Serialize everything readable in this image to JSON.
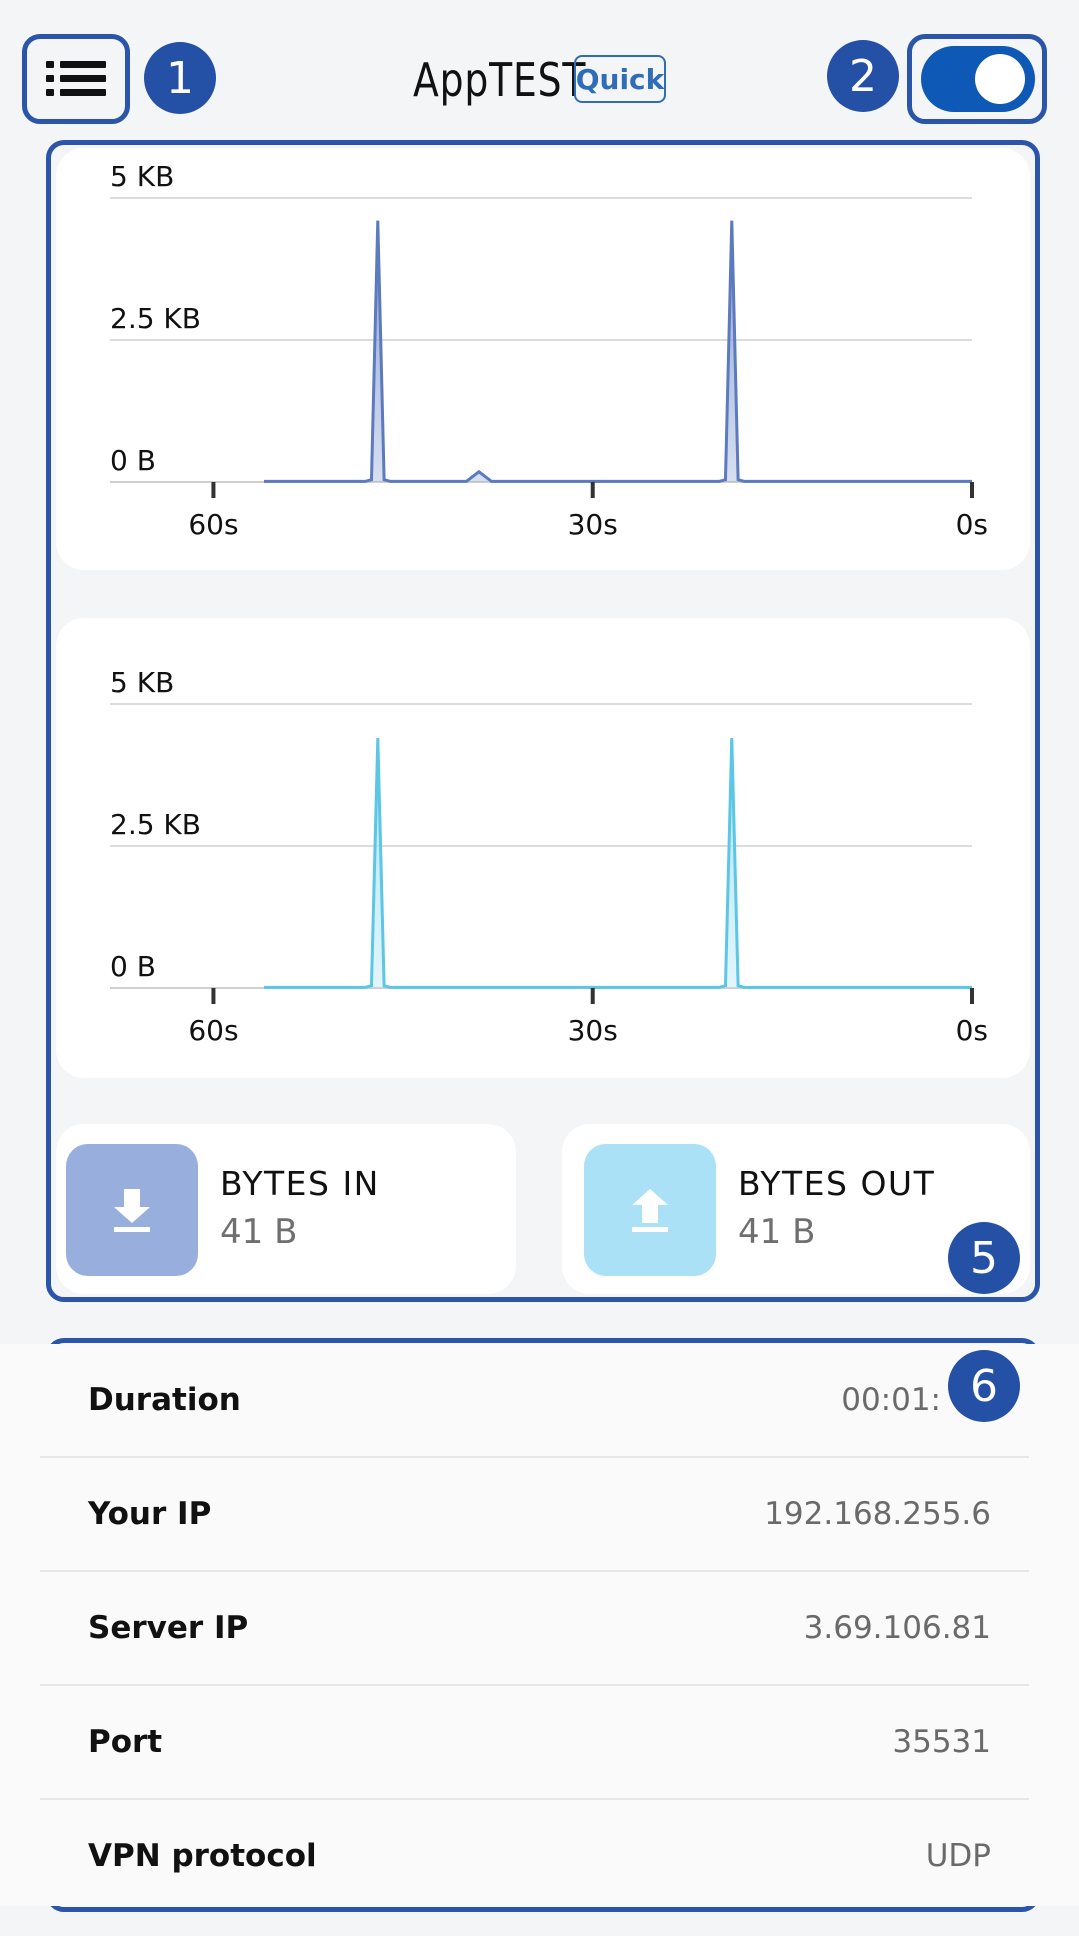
{
  "header": {
    "title": "AppTEST",
    "mode_badge": "Quick",
    "toggle_on": true
  },
  "badges": [
    "1",
    "2",
    "5",
    "6"
  ],
  "chart_data": [
    {
      "type": "area",
      "color": "#5b7abf",
      "fill": "#8ea3d4",
      "y_ticks": [
        "0 B",
        "2.5 KB",
        "5 KB"
      ],
      "ylim": [
        0,
        5
      ],
      "x_ticks": [
        "60s",
        "30s",
        "0s"
      ],
      "x": [
        56,
        48,
        47.5,
        47,
        46.5,
        46,
        40,
        39,
        38,
        20,
        19.5,
        19,
        18.5,
        18,
        0
      ],
      "y": [
        0.01,
        0.01,
        0.04,
        4.6,
        0.04,
        0.01,
        0.01,
        0.18,
        0.01,
        0.01,
        0.04,
        4.6,
        0.04,
        0.01,
        0.01
      ]
    },
    {
      "type": "area",
      "color": "#5cc6e6",
      "fill": "#aee3f3",
      "y_ticks": [
        "0 B",
        "2.5 KB",
        "5 KB"
      ],
      "ylim": [
        0,
        5
      ],
      "x_ticks": [
        "60s",
        "30s",
        "0s"
      ],
      "x": [
        56,
        48,
        47.5,
        47,
        46.5,
        46,
        20,
        19.5,
        19,
        18.5,
        18,
        0
      ],
      "y": [
        0.01,
        0.01,
        0.04,
        4.4,
        0.04,
        0.01,
        0.01,
        0.04,
        4.4,
        0.04,
        0.01,
        0.01
      ]
    }
  ],
  "bytes": {
    "in": {
      "label": "BYTES IN",
      "value": "41 B",
      "icon": "download-icon",
      "color": "#98aedc"
    },
    "out": {
      "label": "BYTES OUT",
      "value": "41 B",
      "icon": "upload-icon",
      "color": "#abe1f6"
    }
  },
  "stats": [
    {
      "label": "Duration",
      "value": "00:01:"
    },
    {
      "label": "Your IP",
      "value": "192.168.255.6"
    },
    {
      "label": "Server IP",
      "value": "3.69.106.81"
    },
    {
      "label": "Port",
      "value": "35531"
    },
    {
      "label": "VPN protocol",
      "value": "UDP"
    }
  ]
}
